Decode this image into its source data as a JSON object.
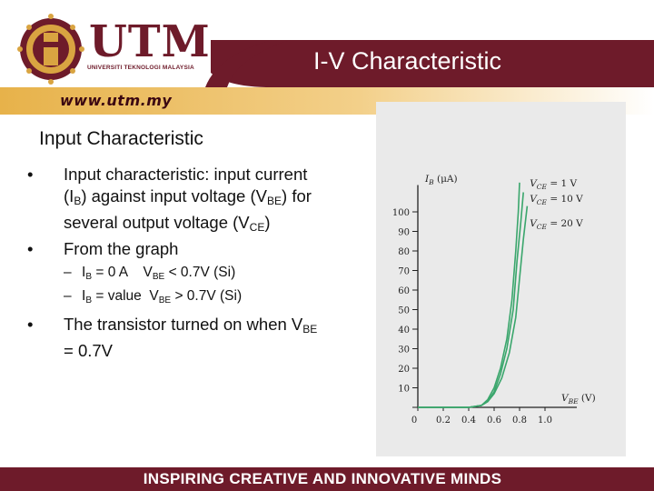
{
  "header": {
    "logo_text": "UTM",
    "logo_subtext": "UNIVERSITI TEKNOLOGI MALAYSIA",
    "title": "I-V Characteristic",
    "website": "www.utm.my"
  },
  "content": {
    "subtitle": "Input Characteristic",
    "bullet1": {
      "t1": "Input characteristic: input current (I",
      "s1": "B",
      "t2": ") against input voltage (V",
      "s2": "BE",
      "t3": ") for several output voltage (V",
      "s3": "CE",
      "t4": ")"
    },
    "bullet2": "From the graph",
    "sub1": {
      "t1": "I",
      "s1": "B",
      "t2": " = 0 A    V",
      "s2": "BE",
      "t3": " < 0.7V (Si)"
    },
    "sub2": {
      "t1": "I",
      "s1": "B",
      "t2": " = value  V",
      "s2": "BE",
      "t3": " > 0.7V (Si)"
    },
    "bullet3": {
      "t1": "The transistor turned on when V",
      "s1": "BE",
      "t2": " = 0.7V"
    }
  },
  "chart_data": {
    "type": "line",
    "ylabel_main": "I",
    "ylabel_sub": "B",
    "ylabel_unit": " (μA)",
    "xlabel_main": "V",
    "xlabel_sub": "BE",
    "xlabel_unit": " (V)",
    "y_ticks": [
      "0",
      "10",
      "20",
      "30",
      "40",
      "50",
      "60",
      "70",
      "80",
      "90",
      "100"
    ],
    "x_ticks": [
      "0",
      "0.2",
      "0.4",
      "0.6",
      "0.8",
      "1.0"
    ],
    "xlim": [
      0,
      1.0
    ],
    "ylim": [
      0,
      110
    ],
    "series": [
      {
        "label_main": "V",
        "label_sub": "CE",
        "label_val": " = 1 V",
        "x": [
          0.4,
          0.5,
          0.55,
          0.6,
          0.65,
          0.7,
          0.74,
          0.77,
          0.79,
          0.8
        ],
        "y": [
          0,
          1,
          4,
          10,
          20,
          35,
          55,
          80,
          100,
          115
        ]
      },
      {
        "label_main": "V",
        "label_sub": "CE",
        "label_val": " = 10 V",
        "x": [
          0.4,
          0.5,
          0.55,
          0.6,
          0.65,
          0.7,
          0.75,
          0.78,
          0.81,
          0.83
        ],
        "y": [
          0,
          1,
          3,
          8,
          17,
          30,
          50,
          75,
          95,
          110
        ]
      },
      {
        "label_main": "V",
        "label_sub": "CE",
        "label_val": " = 20 V",
        "x": [
          0.4,
          0.5,
          0.55,
          0.6,
          0.66,
          0.72,
          0.77,
          0.8,
          0.83,
          0.86
        ],
        "y": [
          0,
          1,
          3,
          7,
          15,
          28,
          46,
          66,
          86,
          103
        ]
      }
    ]
  },
  "footer": {
    "tagline": "INSPIRING CREATIVE AND INNOVATIVE MINDS"
  },
  "colors": {
    "maroon": "#6e1b2a",
    "gold": "#d9a441",
    "curve": "#3aa66c"
  }
}
